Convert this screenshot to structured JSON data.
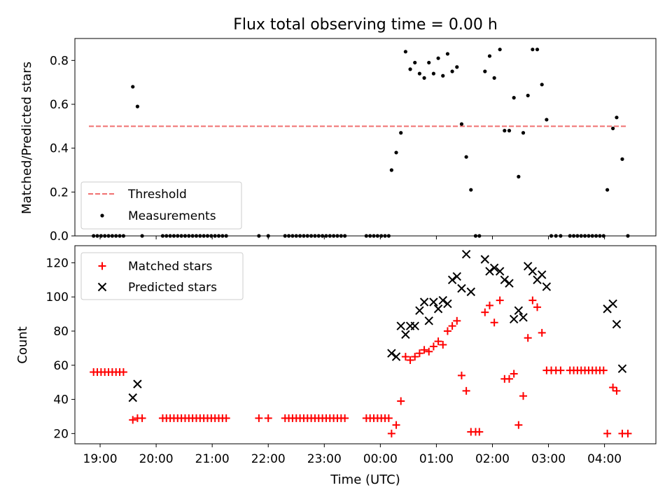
{
  "chart_data": [
    {
      "type": "scatter",
      "title": "Flux total observing time = 0.00 h",
      "xlabel": "",
      "ylabel": "Matched/Predicted stars",
      "xlim": [
        "18:33",
        "04:55"
      ],
      "ylim": [
        0,
        0.9
      ],
      "yticks": [
        "0.0",
        "0.2",
        "0.4",
        "0.6",
        "0.8"
      ],
      "legend_position": "lower-left",
      "threshold": {
        "name": "Threshold",
        "y": 0.5,
        "x_start": "18:48",
        "x_end": "04:25",
        "color": "#f07070"
      },
      "series": [
        {
          "name": "Measurements",
          "color": "#000000",
          "points": [
            [
              "18:53",
              0
            ],
            [
              "18:57",
              0
            ],
            [
              "19:01",
              0
            ],
            [
              "19:05",
              0
            ],
            [
              "19:09",
              0
            ],
            [
              "19:13",
              0
            ],
            [
              "19:17",
              0
            ],
            [
              "19:21",
              0
            ],
            [
              "19:25",
              0
            ],
            [
              "19:35",
              0.68
            ],
            [
              "19:40",
              0.59
            ],
            [
              "19:45",
              0
            ],
            [
              "20:07",
              0
            ],
            [
              "20:11",
              0
            ],
            [
              "20:15",
              0
            ],
            [
              "20:19",
              0
            ],
            [
              "20:23",
              0
            ],
            [
              "20:27",
              0
            ],
            [
              "20:31",
              0
            ],
            [
              "20:35",
              0
            ],
            [
              "20:39",
              0
            ],
            [
              "20:43",
              0
            ],
            [
              "20:47",
              0
            ],
            [
              "20:51",
              0
            ],
            [
              "20:55",
              0
            ],
            [
              "20:59",
              0
            ],
            [
              "21:03",
              0
            ],
            [
              "21:07",
              0
            ],
            [
              "21:11",
              0
            ],
            [
              "21:15",
              0
            ],
            [
              "21:50",
              0
            ],
            [
              "22:00",
              0
            ],
            [
              "22:18",
              0
            ],
            [
              "22:22",
              0
            ],
            [
              "22:26",
              0
            ],
            [
              "22:30",
              0
            ],
            [
              "22:34",
              0
            ],
            [
              "22:38",
              0
            ],
            [
              "22:42",
              0
            ],
            [
              "22:46",
              0
            ],
            [
              "22:50",
              0
            ],
            [
              "22:54",
              0
            ],
            [
              "22:58",
              0
            ],
            [
              "23:02",
              0
            ],
            [
              "23:06",
              0
            ],
            [
              "23:10",
              0
            ],
            [
              "23:14",
              0
            ],
            [
              "23:18",
              0
            ],
            [
              "23:22",
              0
            ],
            [
              "23:45",
              0
            ],
            [
              "23:49",
              0
            ],
            [
              "23:53",
              0
            ],
            [
              "23:57",
              0
            ],
            [
              "00:01",
              0
            ],
            [
              "00:05",
              0
            ],
            [
              "00:09",
              0
            ],
            [
              "00:12",
              0.3
            ],
            [
              "00:17",
              0.38
            ],
            [
              "00:22",
              0.47
            ],
            [
              "00:27",
              0.84
            ],
            [
              "00:32",
              0.76
            ],
            [
              "00:37",
              0.79
            ],
            [
              "00:42",
              0.74
            ],
            [
              "00:47",
              0.72
            ],
            [
              "00:52",
              0.79
            ],
            [
              "00:57",
              0.74
            ],
            [
              "01:02",
              0.81
            ],
            [
              "01:07",
              0.73
            ],
            [
              "01:12",
              0.83
            ],
            [
              "01:17",
              0.75
            ],
            [
              "01:22",
              0.77
            ],
            [
              "01:27",
              0.51
            ],
            [
              "01:32",
              0.36
            ],
            [
              "01:37",
              0.21
            ],
            [
              "01:42",
              0
            ],
            [
              "01:46",
              0
            ],
            [
              "01:52",
              0.75
            ],
            [
              "01:57",
              0.82
            ],
            [
              "02:02",
              0.72
            ],
            [
              "02:08",
              0.85
            ],
            [
              "02:13",
              0.48
            ],
            [
              "02:18",
              0.48
            ],
            [
              "02:23",
              0.63
            ],
            [
              "02:28",
              0.27
            ],
            [
              "02:33",
              0.47
            ],
            [
              "02:38",
              0.64
            ],
            [
              "02:43",
              0.85
            ],
            [
              "02:48",
              0.85
            ],
            [
              "02:53",
              0.69
            ],
            [
              "02:58",
              0.53
            ],
            [
              "03:03",
              0
            ],
            [
              "03:08",
              0
            ],
            [
              "03:13",
              0
            ],
            [
              "03:23",
              0
            ],
            [
              "03:27",
              0
            ],
            [
              "03:31",
              0
            ],
            [
              "03:35",
              0
            ],
            [
              "03:39",
              0
            ],
            [
              "03:43",
              0
            ],
            [
              "03:47",
              0
            ],
            [
              "03:51",
              0
            ],
            [
              "03:55",
              0
            ],
            [
              "03:59",
              0
            ],
            [
              "04:03",
              0.21
            ],
            [
              "04:09",
              0.49
            ],
            [
              "04:13",
              0.54
            ],
            [
              "04:19",
              0.35
            ],
            [
              "04:25",
              0
            ]
          ]
        }
      ]
    },
    {
      "type": "scatter",
      "title": "",
      "xlabel": "Time (UTC)",
      "ylabel": "Count",
      "xlim": [
        "18:33",
        "04:55"
      ],
      "ylim": [
        14,
        130
      ],
      "xticks": [
        "19:00",
        "20:00",
        "21:00",
        "22:00",
        "23:00",
        "00:00",
        "01:00",
        "02:00",
        "03:00",
        "04:00"
      ],
      "yticks": [
        "20",
        "40",
        "60",
        "80",
        "100",
        "120"
      ],
      "legend_position": "upper-left",
      "series": [
        {
          "name": "Matched stars",
          "color": "#ff0000",
          "marker": "+",
          "points": [
            [
              "18:53",
              56
            ],
            [
              "18:57",
              56
            ],
            [
              "19:01",
              56
            ],
            [
              "19:05",
              56
            ],
            [
              "19:09",
              56
            ],
            [
              "19:13",
              56
            ],
            [
              "19:17",
              56
            ],
            [
              "19:21",
              56
            ],
            [
              "19:25",
              56
            ],
            [
              "19:35",
              28
            ],
            [
              "19:40",
              29
            ],
            [
              "19:45",
              29
            ],
            [
              "20:07",
              29
            ],
            [
              "20:11",
              29
            ],
            [
              "20:15",
              29
            ],
            [
              "20:19",
              29
            ],
            [
              "20:23",
              29
            ],
            [
              "20:27",
              29
            ],
            [
              "20:31",
              29
            ],
            [
              "20:35",
              29
            ],
            [
              "20:39",
              29
            ],
            [
              "20:43",
              29
            ],
            [
              "20:47",
              29
            ],
            [
              "20:51",
              29
            ],
            [
              "20:55",
              29
            ],
            [
              "20:59",
              29
            ],
            [
              "21:03",
              29
            ],
            [
              "21:07",
              29
            ],
            [
              "21:11",
              29
            ],
            [
              "21:15",
              29
            ],
            [
              "21:50",
              29
            ],
            [
              "22:00",
              29
            ],
            [
              "22:18",
              29
            ],
            [
              "22:22",
              29
            ],
            [
              "22:26",
              29
            ],
            [
              "22:30",
              29
            ],
            [
              "22:34",
              29
            ],
            [
              "22:38",
              29
            ],
            [
              "22:42",
              29
            ],
            [
              "22:46",
              29
            ],
            [
              "22:50",
              29
            ],
            [
              "22:54",
              29
            ],
            [
              "22:58",
              29
            ],
            [
              "23:02",
              29
            ],
            [
              "23:06",
              29
            ],
            [
              "23:10",
              29
            ],
            [
              "23:14",
              29
            ],
            [
              "23:18",
              29
            ],
            [
              "23:22",
              29
            ],
            [
              "23:45",
              29
            ],
            [
              "23:49",
              29
            ],
            [
              "23:53",
              29
            ],
            [
              "23:57",
              29
            ],
            [
              "00:01",
              29
            ],
            [
              "00:05",
              29
            ],
            [
              "00:09",
              29
            ],
            [
              "00:12",
              20
            ],
            [
              "00:17",
              25
            ],
            [
              "00:22",
              39
            ],
            [
              "00:27",
              65
            ],
            [
              "00:32",
              63
            ],
            [
              "00:37",
              65
            ],
            [
              "00:42",
              67
            ],
            [
              "00:47",
              69
            ],
            [
              "00:52",
              68
            ],
            [
              "00:57",
              71
            ],
            [
              "01:02",
              74
            ],
            [
              "01:07",
              72
            ],
            [
              "01:12",
              80
            ],
            [
              "01:17",
              83
            ],
            [
              "01:22",
              86
            ],
            [
              "01:27",
              54
            ],
            [
              "01:32",
              45
            ],
            [
              "01:37",
              21
            ],
            [
              "01:42",
              21
            ],
            [
              "01:46",
              21
            ],
            [
              "01:52",
              91
            ],
            [
              "01:57",
              95
            ],
            [
              "02:02",
              85
            ],
            [
              "02:08",
              98
            ],
            [
              "02:13",
              52
            ],
            [
              "02:18",
              52
            ],
            [
              "02:23",
              55
            ],
            [
              "02:28",
              25
            ],
            [
              "02:33",
              42
            ],
            [
              "02:38",
              76
            ],
            [
              "02:43",
              98
            ],
            [
              "02:48",
              94
            ],
            [
              "02:53",
              79
            ],
            [
              "02:58",
              57
            ],
            [
              "03:03",
              57
            ],
            [
              "03:08",
              57
            ],
            [
              "03:13",
              57
            ],
            [
              "03:23",
              57
            ],
            [
              "03:27",
              57
            ],
            [
              "03:31",
              57
            ],
            [
              "03:35",
              57
            ],
            [
              "03:39",
              57
            ],
            [
              "03:43",
              57
            ],
            [
              "03:47",
              57
            ],
            [
              "03:51",
              57
            ],
            [
              "03:55",
              57
            ],
            [
              "03:59",
              57
            ],
            [
              "04:03",
              20
            ],
            [
              "04:09",
              47
            ],
            [
              "04:13",
              45
            ],
            [
              "04:19",
              20
            ],
            [
              "04:25",
              20
            ]
          ]
        },
        {
          "name": "Predicted stars",
          "color": "#000000",
          "marker": "x",
          "points": [
            [
              "19:35",
              41
            ],
            [
              "19:40",
              49
            ],
            [
              "00:12",
              67
            ],
            [
              "00:17",
              65
            ],
            [
              "00:22",
              83
            ],
            [
              "00:27",
              78
            ],
            [
              "00:32",
              83
            ],
            [
              "00:37",
              83
            ],
            [
              "00:42",
              92
            ],
            [
              "00:47",
              97
            ],
            [
              "00:52",
              86
            ],
            [
              "00:57",
              97
            ],
            [
              "01:02",
              93
            ],
            [
              "01:07",
              98
            ],
            [
              "01:12",
              96
            ],
            [
              "01:17",
              110
            ],
            [
              "01:22",
              112
            ],
            [
              "01:27",
              105
            ],
            [
              "01:32",
              125
            ],
            [
              "01:37",
              103
            ],
            [
              "01:52",
              122
            ],
            [
              "01:57",
              115
            ],
            [
              "02:02",
              117
            ],
            [
              "02:08",
              115
            ],
            [
              "02:13",
              110
            ],
            [
              "02:18",
              108
            ],
            [
              "02:23",
              87
            ],
            [
              "02:28",
              92
            ],
            [
              "02:33",
              88
            ],
            [
              "02:38",
              118
            ],
            [
              "02:43",
              115
            ],
            [
              "02:48",
              110
            ],
            [
              "02:53",
              113
            ],
            [
              "02:58",
              106
            ],
            [
              "04:03",
              93
            ],
            [
              "04:09",
              96
            ],
            [
              "04:13",
              84
            ],
            [
              "04:19",
              58
            ]
          ]
        }
      ]
    }
  ]
}
